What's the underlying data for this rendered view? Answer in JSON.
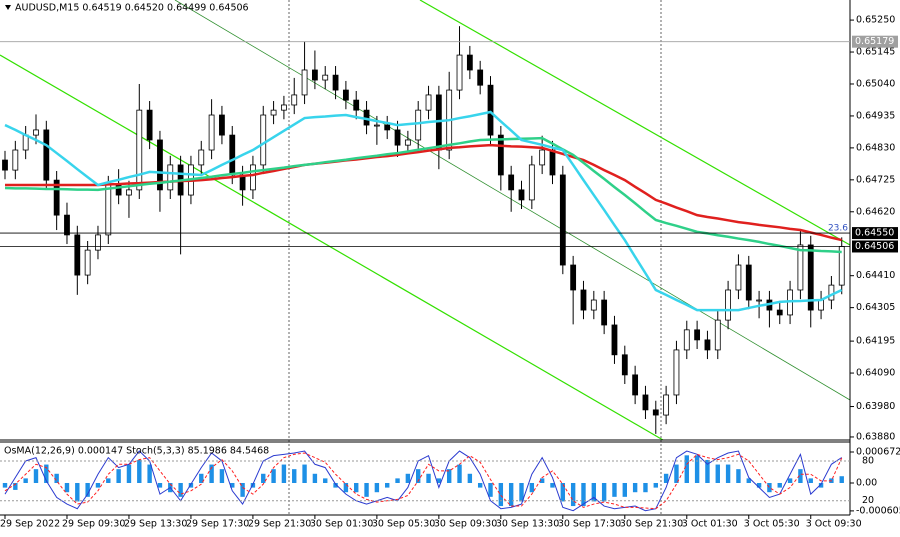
{
  "chart_data": [
    {
      "type": "candlestick",
      "title": "AUDUSD,M15  0.64519 0.64520 0.64499 0.64506",
      "categories": [
        "29 Sep 2022",
        null,
        null,
        null,
        null,
        null,
        "29 Sep 09:30",
        null,
        null,
        null,
        null,
        null,
        "29 Sep 13:30",
        null,
        null,
        null,
        null,
        null,
        "29 Sep 17:30",
        null,
        null,
        null,
        null,
        null,
        "29 Sep 21:30",
        null,
        null,
        null,
        null,
        null,
        "30 Sep 01:30",
        null,
        null,
        null,
        null,
        null,
        "30 Sep 05:30",
        null,
        null,
        null,
        null,
        null,
        "30 Sep 09:30",
        null,
        null,
        null,
        null,
        null,
        "30 Sep 13:30",
        null,
        null,
        null,
        null,
        null,
        "30 Sep 17:30",
        null,
        null,
        null,
        null,
        null,
        "30 Sep 21:30",
        null,
        null,
        null,
        null,
        null,
        "3 Oct 01:30",
        null,
        null,
        null,
        null,
        null,
        "3 Oct 05:30",
        null,
        null,
        null,
        null,
        null,
        "3 Oct 09:30",
        null,
        null,
        null
      ],
      "ohlc": {
        "open": [
          0.6479,
          0.64757,
          0.64823,
          0.64872,
          0.64889,
          0.64724,
          0.64609,
          0.64544,
          0.64412,
          0.64494,
          0.64544,
          0.64708,
          0.64675,
          0.64692,
          0.64954,
          0.64856,
          0.64692,
          0.64774,
          0.64675,
          0.64774,
          0.64823,
          0.64938,
          0.64872,
          0.64741,
          0.64692,
          0.64774,
          0.64938,
          0.64954,
          0.64971,
          0.65004,
          0.65086,
          0.65053,
          0.65069,
          0.6502,
          0.64987,
          0.64954,
          0.64905,
          0.64905,
          0.64889,
          0.64839,
          0.64856,
          0.64954,
          0.65004,
          0.64823,
          0.6502,
          0.65135,
          0.65086,
          0.65036,
          0.64872,
          0.64741,
          0.64692,
          0.64659,
          0.64774,
          0.64823,
          0.64741,
          0.64445,
          0.64363,
          0.64297,
          0.6433,
          0.64248,
          0.6415,
          0.64084,
          0.64018,
          0.63969,
          0.63952,
          0.64018,
          0.64166,
          0.64232,
          0.64199,
          0.64166,
          0.64264,
          0.64363,
          0.64445,
          0.6433,
          0.6433,
          0.64297,
          0.64281,
          0.64363,
          0.64511,
          0.64297,
          0.6433,
          0.64379
        ],
        "high": [
          0.6482,
          0.64853,
          0.64902,
          0.6494,
          0.64919,
          0.64754,
          0.6465,
          0.64574,
          0.64524,
          0.64574,
          0.64738,
          0.6476,
          0.64722,
          0.6504,
          0.64984,
          0.64886,
          0.64804,
          0.64804,
          0.64804,
          0.64853,
          0.6499,
          0.64968,
          0.64902,
          0.64771,
          0.64804,
          0.64968,
          0.64984,
          0.65001,
          0.6506,
          0.6518,
          0.6515,
          0.65099,
          0.65099,
          0.6505,
          0.65017,
          0.64984,
          0.64935,
          0.64935,
          0.64919,
          0.64886,
          0.64984,
          0.65034,
          0.65034,
          0.6508,
          0.6523,
          0.65165,
          0.65116,
          0.65066,
          0.64902,
          0.64771,
          0.64722,
          0.64804,
          0.6487,
          0.64853,
          0.64771,
          0.64475,
          0.64393,
          0.6436,
          0.6436,
          0.64278,
          0.6418,
          0.64114,
          0.64048,
          0.63999,
          0.64048,
          0.64196,
          0.64262,
          0.64262,
          0.64229,
          0.64294,
          0.64393,
          0.6448,
          0.64475,
          0.6436,
          0.6436,
          0.64327,
          0.64393,
          0.6456,
          0.64541,
          0.6436,
          0.64409,
          0.64536
        ],
        "low": [
          0.64727,
          0.64727,
          0.64793,
          0.64842,
          0.64694,
          0.6456,
          0.64514,
          0.64347,
          0.64382,
          0.64464,
          0.64514,
          0.64645,
          0.646,
          0.64662,
          0.64826,
          0.6462,
          0.64662,
          0.6448,
          0.64645,
          0.64744,
          0.64793,
          0.64842,
          0.64711,
          0.6464,
          0.64662,
          0.64744,
          0.64908,
          0.64924,
          0.64941,
          0.64974,
          0.65023,
          0.65023,
          0.6499,
          0.64957,
          0.64924,
          0.64875,
          0.6484,
          0.64859,
          0.648,
          0.64809,
          0.64826,
          0.64924,
          0.6476,
          0.64793,
          0.6499,
          0.65056,
          0.65006,
          0.64842,
          0.6469,
          0.6462,
          0.64629,
          0.64629,
          0.64744,
          0.64711,
          0.64415,
          0.6425,
          0.64267,
          0.64267,
          0.64218,
          0.6412,
          0.64054,
          0.63988,
          0.63939,
          0.6389,
          0.63922,
          0.63988,
          0.64136,
          0.64169,
          0.64136,
          0.64136,
          0.64234,
          0.64333,
          0.643,
          0.6427,
          0.6424,
          0.64251,
          0.64251,
          0.64333,
          0.6424,
          0.64267,
          0.643,
          0.64349
        ],
        "close": [
          0.64757,
          0.64823,
          0.64872,
          0.64889,
          0.64724,
          0.64609,
          0.64544,
          0.64412,
          0.64494,
          0.64544,
          0.64708,
          0.64675,
          0.64692,
          0.64954,
          0.64856,
          0.64692,
          0.64774,
          0.64675,
          0.64774,
          0.64823,
          0.64938,
          0.64872,
          0.64741,
          0.64692,
          0.64774,
          0.64938,
          0.64954,
          0.64971,
          0.65004,
          0.65086,
          0.65053,
          0.65069,
          0.6502,
          0.64987,
          0.64954,
          0.64905,
          0.64905,
          0.64889,
          0.64839,
          0.64856,
          0.64954,
          0.65004,
          0.64823,
          0.6502,
          0.65135,
          0.65086,
          0.65036,
          0.64872,
          0.64741,
          0.64692,
          0.64659,
          0.64774,
          0.64823,
          0.64741,
          0.64445,
          0.64363,
          0.64297,
          0.6433,
          0.64248,
          0.6415,
          0.64084,
          0.64018,
          0.63969,
          0.63952,
          0.64018,
          0.64166,
          0.64232,
          0.64199,
          0.64166,
          0.64264,
          0.64363,
          0.64445,
          0.6433,
          0.6433,
          0.64297,
          0.64281,
          0.64363,
          0.64511,
          0.64297,
          0.6433,
          0.64379,
          0.64506
        ]
      },
      "up_color": "#ffffff",
      "down_color": "#000000",
      "series": [
        {
          "color": "#e0201e",
          "values": [
            0.64708,
            0.64708,
            0.64708,
            0.64708,
            0.64708,
            0.64708,
            0.64708,
            0.64708,
            0.64708,
            0.64708,
            0.6471,
            0.64711,
            0.64713,
            0.64714,
            0.64716,
            0.64718,
            0.64719,
            0.64721,
            0.64722,
            0.64724,
            0.64727,
            0.64731,
            0.64734,
            0.64738,
            0.64741,
            0.64748,
            0.64754,
            0.64761,
            0.64767,
            0.64774,
            0.64778,
            0.64781,
            0.64785,
            0.64789,
            0.64792,
            0.64796,
            0.648,
            0.64803,
            0.64807,
            0.64812,
            0.64816,
            0.64821,
            0.64825,
            0.6483,
            0.64832,
            0.64835,
            0.64837,
            0.64839,
            0.64837,
            0.64835,
            0.64834,
            0.64832,
            0.6483,
            0.6482,
            0.6481,
            0.648,
            0.6479,
            0.64774,
            0.64757,
            0.64741,
            0.64724,
            0.64702,
            0.64681,
            0.64659,
            0.64647,
            0.64634,
            0.64622,
            0.64609,
            0.64603,
            0.64598,
            0.64592,
            0.64586,
            0.64582,
            0.64577,
            0.64573,
            0.64569,
            0.64564,
            0.6456,
            0.64552,
            0.64544,
            0.64535,
            0.64527
          ]
        },
        {
          "color": "#2fd089",
          "values": [
            0.64698,
            0.64697,
            0.64697,
            0.64696,
            0.64695,
            0.64695,
            0.64694,
            0.64693,
            0.64693,
            0.64692,
            0.64696,
            0.647,
            0.64704,
            0.64708,
            0.64712,
            0.64715,
            0.64719,
            0.64723,
            0.64727,
            0.64731,
            0.64735,
            0.6474,
            0.64744,
            0.64748,
            0.64753,
            0.64757,
            0.64761,
            0.64765,
            0.6477,
            0.64774,
            0.64778,
            0.64783,
            0.64787,
            0.64791,
            0.64796,
            0.648,
            0.64804,
            0.64809,
            0.64813,
            0.64818,
            0.64824,
            0.64829,
            0.64834,
            0.6484,
            0.64845,
            0.64851,
            0.64856,
            0.64857,
            0.64858,
            0.64859,
            0.6486,
            0.64861,
            0.64862,
            0.64844,
            0.64825,
            0.64807,
            0.64781,
            0.64754,
            0.64728,
            0.64701,
            0.64675,
            0.64648,
            0.6462,
            0.64593,
            0.64583,
            0.64574,
            0.64564,
            0.64554,
            0.64549,
            0.64543,
            0.64538,
            0.64532,
            0.64527,
            0.64521,
            0.64514,
            0.64508,
            0.64501,
            0.64494,
            0.64493,
            0.64491,
            0.6449,
            0.64488
          ]
        },
        {
          "color": "#38d4ec",
          "values": [
            0.64905,
            0.64889,
            0.64872,
            0.64856,
            0.64839,
            0.64813,
            0.64787,
            0.6476,
            0.64734,
            0.64708,
            0.64717,
            0.64725,
            0.64734,
            0.64742,
            0.64751,
            0.64749,
            0.64747,
            0.64745,
            0.64743,
            0.64741,
            0.64757,
            0.64774,
            0.6479,
            0.64807,
            0.64823,
            0.64844,
            0.64865,
            0.64886,
            0.64907,
            0.64928,
            0.64931,
            0.64933,
            0.64936,
            0.64938,
            0.64931,
            0.64925,
            0.64918,
            0.64912,
            0.64905,
            0.64908,
            0.64911,
            0.64915,
            0.64918,
            0.64921,
            0.64928,
            0.64934,
            0.64941,
            0.64948,
            0.64917,
            0.64887,
            0.64856,
            0.64848,
            0.6484,
            0.64831,
            0.64823,
            0.64774,
            0.64724,
            0.64675,
            0.64626,
            0.64576,
            0.64527,
            0.64472,
            0.64418,
            0.64363,
            0.64347,
            0.6433,
            0.64314,
            0.64297,
            0.64297,
            0.64297,
            0.64297,
            0.64297,
            0.64304,
            0.64311,
            0.64317,
            0.64324,
            0.64326,
            0.64327,
            0.64329,
            0.6433,
            0.64347,
            0.64363
          ]
        }
      ],
      "ylim": [
        0.6387,
        0.65316
      ],
      "yticks": [
        {
          "value": 0.6525,
          "label": "0.65250"
        },
        0.65145,
        {
          "value": 0.6504,
          "label": "0.65040"
        },
        0.64935,
        {
          "value": 0.6483,
          "label": "0.64830"
        },
        0.64725,
        {
          "value": 0.6462,
          "label": "0.64620"
        },
        {
          "value": 0.6441,
          "label": "0.64410"
        },
        0.64305,
        0.64195,
        {
          "value": 0.6409,
          "label": "0.64090"
        },
        {
          "value": 0.6398,
          "label": "0.63980"
        },
        {
          "value": 0.6388,
          "label": "0.63880"
        }
      ],
      "levels": [
        {
          "value": 0.65179,
          "label": "0.65179",
          "color": "#a0a0a0"
        },
        {
          "value": 0.6455,
          "label": "0.64550",
          "color": "#000000"
        },
        {
          "value": 0.64506,
          "label": "0.64506",
          "color": "#000000"
        }
      ],
      "annotation": "23.6"
    },
    {
      "type": "oscillator",
      "title": "OsMA(12,26,9) 0.000147  Stoch(5,3,3) 85.1986 84.5468",
      "series": [
        {
          "style": "histogram",
          "color": "#1e90e6",
          "values": [
            -0.0001,
            -0.00015,
            0.0001,
            0.0003,
            0.0004,
            0.0002,
            -0.0002,
            -0.0004,
            -0.0003,
            -0.0001,
            0.0001,
            0.0003,
            0.0004,
            0.0005,
            0.0004,
            -0.0001,
            -0.0002,
            -0.0003,
            -0.0001,
            0.0002,
            0.0004,
            0.0003,
            -0.0001,
            -0.0003,
            -0.0001,
            0.0002,
            0.0003,
            0.0004,
            0.0003,
            0.0004,
            0.0002,
            0.0001,
            -0.0001,
            -0.0002,
            -0.0002,
            -0.0003,
            -0.0002,
            -0.0001,
            0.0001,
            0.0002,
            0.0003,
            0.0002,
            0.0001,
            0.0003,
            0.0004,
            0.0002,
            -0.0001,
            -0.0003,
            -0.0005,
            -0.0005,
            -0.0004,
            -0.0002,
            0.0001,
            -0.0001,
            -0.0004,
            -0.0005,
            -0.0005,
            -0.0004,
            -0.0004,
            -0.0003,
            -0.0003,
            -0.0002,
            -0.0002,
            -0.0001,
            0.0002,
            0.0004,
            0.0006,
            0.0006,
            0.0005,
            0.0004,
            0.0004,
            0.0003,
            0.0001,
            -0.0001,
            -0.0002,
            -0.0001,
            0.0001,
            0.0003,
            0.0001,
            -0.0001,
            0.0001,
            0.000147
          ]
        },
        {
          "style": "line",
          "axis": "y2",
          "color": "#2b3bd0",
          "values": [
            30,
            55,
            80,
            85,
            50,
            25,
            15,
            8,
            30,
            60,
            85,
            70,
            75,
            95,
            80,
            30,
            40,
            20,
            45,
            70,
            92,
            80,
            35,
            15,
            45,
            80,
            88,
            90,
            92,
            95,
            75,
            70,
            45,
            30,
            20,
            15,
            20,
            25,
            20,
            40,
            80,
            88,
            40,
            80,
            95,
            85,
            60,
            20,
            8,
            10,
            15,
            60,
            85,
            55,
            10,
            5,
            15,
            25,
            12,
            8,
            10,
            12,
            5,
            8,
            40,
            85,
            95,
            90,
            75,
            85,
            92,
            95,
            55,
            40,
            25,
            30,
            60,
            90,
            30,
            45,
            75,
            85.1986
          ]
        },
        {
          "style": "dash",
          "axis": "y2",
          "color": "#ff2020",
          "values": [
            35,
            45,
            60,
            75,
            70,
            50,
            30,
            15,
            18,
            35,
            60,
            75,
            75,
            82,
            85,
            65,
            45,
            30,
            35,
            45,
            70,
            82,
            65,
            40,
            30,
            45,
            70,
            85,
            90,
            92,
            85,
            78,
            60,
            45,
            30,
            22,
            18,
            20,
            22,
            28,
            50,
            75,
            65,
            65,
            75,
            88,
            78,
            52,
            28,
            12,
            12,
            30,
            55,
            65,
            45,
            20,
            10,
            15,
            18,
            15,
            10,
            10,
            9,
            8,
            20,
            45,
            75,
            90,
            85,
            82,
            85,
            90,
            80,
            60,
            40,
            30,
            40,
            60,
            60,
            50,
            50,
            84.5468
          ]
        }
      ],
      "ylim": [
        -0.000694,
        0.000889
      ],
      "yticks": [
        0.000672,
        {
          "value": 0,
          "label": "0.00"
        },
        -0.000605
      ],
      "y2lim": [
        -1.5,
        108.6
      ],
      "y2ticks": [
        80,
        20
      ],
      "grid": true
    }
  ]
}
